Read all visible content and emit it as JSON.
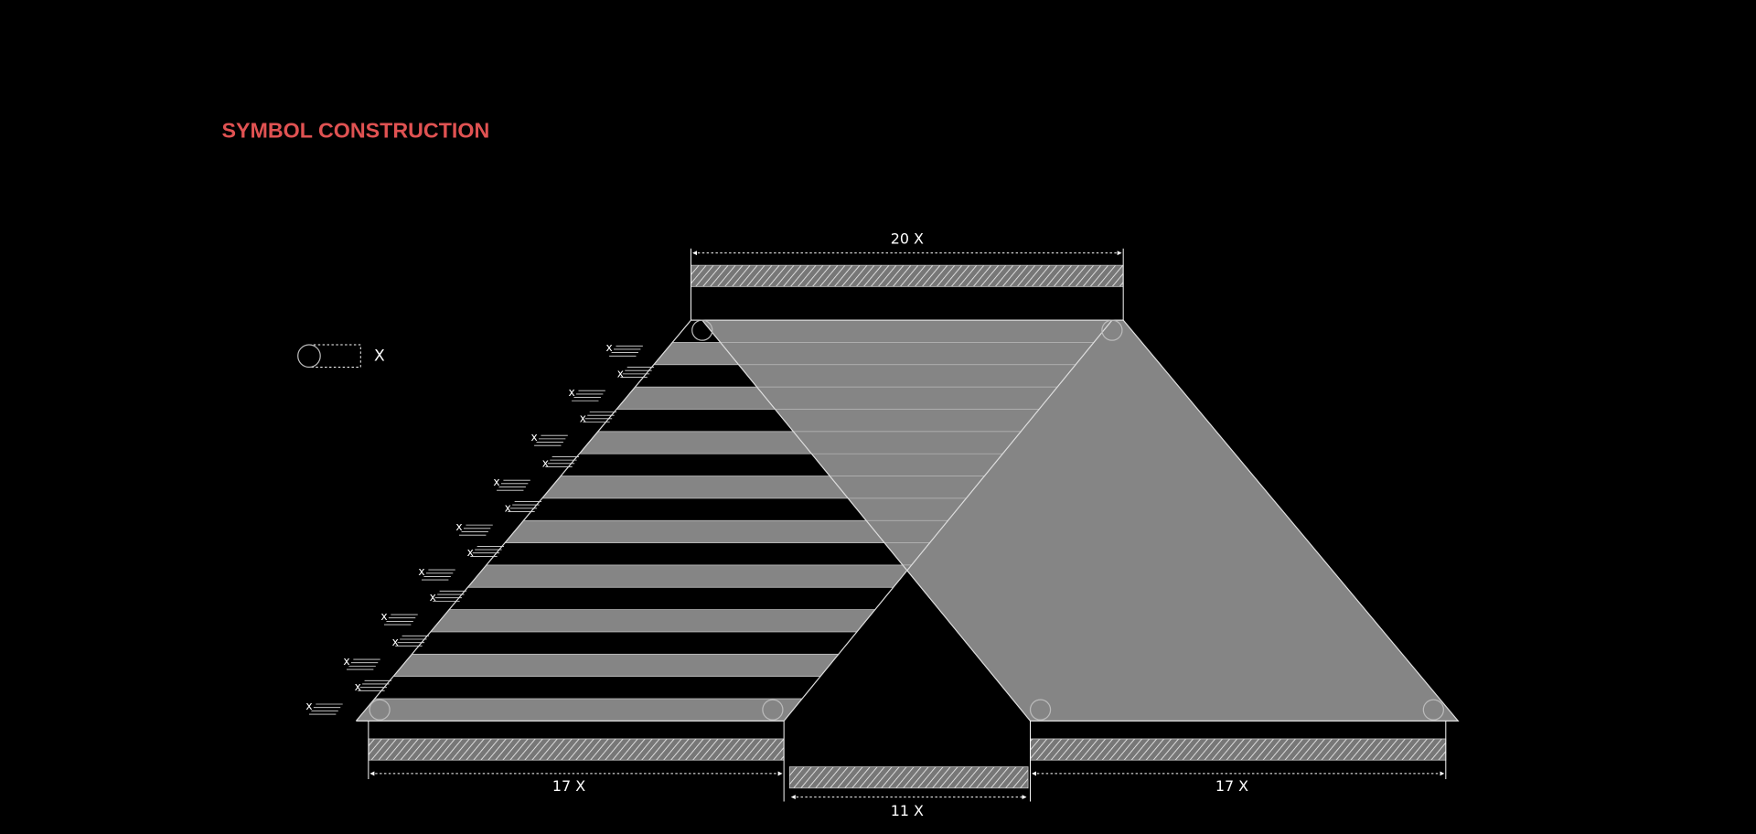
{
  "header": {
    "title": "SYMBOL CONSTRUCTION"
  },
  "legend": {
    "label": "X"
  },
  "dimensions": [
    {
      "label": "20 X"
    },
    {
      "label": "17 X"
    },
    {
      "label": "11 X"
    },
    {
      "label": "17 X"
    }
  ],
  "stripe_labels": [
    "x",
    "x",
    "x",
    "x",
    "x",
    "x",
    "x",
    "x",
    "x",
    "x",
    "x",
    "x",
    "x",
    "x",
    "x",
    "x",
    "x"
  ]
}
